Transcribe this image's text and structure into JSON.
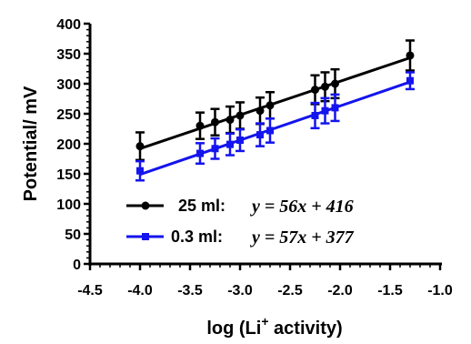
{
  "chart_data": {
    "type": "scatter",
    "xlabel": {
      "main": "log (Li",
      "sup": "+",
      "tail": " activity)"
    },
    "ylabel": "Potential/ mV",
    "xlim": [
      -4.5,
      -1.0
    ],
    "ylim": [
      0,
      400
    ],
    "x_ticks": [
      -4.5,
      -4.0,
      -3.5,
      -3.0,
      -2.5,
      -2.0,
      -1.5,
      -1.0
    ],
    "x_tick_labels": [
      "-4.5",
      "-4.0",
      "-3.5",
      "-3.0",
      "-2.5",
      "-2.0",
      "-1.5",
      "-1.0"
    ],
    "y_ticks": [
      0,
      50,
      100,
      150,
      200,
      250,
      300,
      350,
      400
    ],
    "y_tick_labels": [
      "0",
      "50",
      "100",
      "150",
      "200",
      "250",
      "300",
      "350",
      "400"
    ],
    "grid": false,
    "legend_position": "bottom-left",
    "series": [
      {
        "name": "25 ml:",
        "equation": "y = 56x + 416",
        "slope": 56,
        "intercept": 416,
        "color": "#000000",
        "marker": "circle",
        "x": [
          -4.0,
          -3.4,
          -3.25,
          -3.1,
          -3.0,
          -2.8,
          -2.7,
          -2.25,
          -2.15,
          -2.05,
          -1.3
        ],
        "y": [
          196,
          230,
          236,
          240,
          247,
          255,
          264,
          290,
          295,
          300,
          347
        ],
        "error": [
          23,
          22,
          22,
          22,
          22,
          22,
          22,
          24,
          24,
          24,
          25
        ]
      },
      {
        "name": "0.3 ml:",
        "equation": "y = 57x + 377",
        "slope": 57,
        "intercept": 377,
        "color": "#1414ee",
        "marker": "square",
        "x": [
          -4.0,
          -3.4,
          -3.25,
          -3.1,
          -3.0,
          -2.8,
          -2.7,
          -2.25,
          -2.15,
          -2.05,
          -1.3
        ],
        "y": [
          155,
          184,
          192,
          199,
          206,
          215,
          222,
          247,
          255,
          260,
          305
        ],
        "error": [
          16,
          17,
          17,
          18,
          18,
          19,
          20,
          21,
          21,
          22,
          14
        ]
      }
    ]
  }
}
